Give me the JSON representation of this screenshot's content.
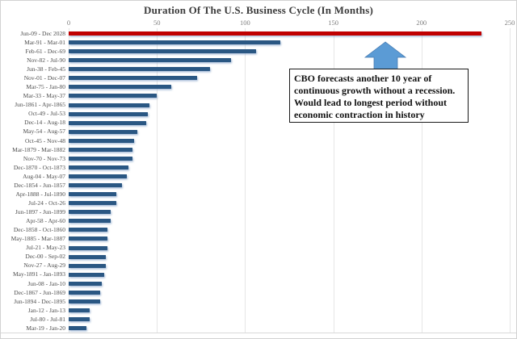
{
  "chart_data": {
    "type": "bar",
    "orientation": "horizontal",
    "title": "Duration Of The U.S. Business Cycle (In Months)",
    "xlabel": "",
    "ylabel": "",
    "xlim": [
      0,
      250
    ],
    "x_ticks": [
      0,
      50,
      100,
      150,
      200,
      250
    ],
    "grid": "vertical",
    "categories": [
      "Jun-09 - Dec 2028",
      "Mar-91 - Mar-01",
      "Feb-61 - Dec-69",
      "Nov-82 - Jul-90",
      "Jun-38 - Feb-45",
      "Nov-01 - Dec-07",
      "Mar-75 - Jan-80",
      "Mar-33 - May-37",
      "Jun-1861 - Apr-1865",
      "Oct-49 - Jul-53",
      "Dec-14 - Aug-18",
      "May-54 - Aug-57",
      "Oct-45 - Nov-48",
      "Mar-1879 - Mar-1882",
      "Nov-70 - Nov-73",
      "Dec-1870 - Oct-1873",
      "Aug-04 - May-07",
      "Dec-1854 - Jun-1857",
      "Apr-1888 - Jul-1890",
      "Jul-24 - Oct-26",
      "Jun-1897 - Jun-1899",
      "Apr-58 - Apr-60",
      "Dec-1858 - Oct-1860",
      "May-1885 - Mar-1887",
      "Jul-21 - May-23",
      "Dec-00 - Sep-02",
      "Nov-27 - Aug-29",
      "May-1891 - Jan-1893",
      "Jun-08 - Jan-10",
      "Dec-1867 - Jun-1869",
      "Jun-1894 - Dec-1895",
      "Jan-12 - Jan-13",
      "Jul-80 - Jul-81",
      "Mar-19 - Jan-20"
    ],
    "values": [
      234,
      120,
      106,
      92,
      80,
      73,
      58,
      50,
      46,
      45,
      44,
      39,
      37,
      36,
      36,
      34,
      33,
      30,
      27,
      27,
      24,
      24,
      22,
      22,
      22,
      21,
      21,
      20,
      19,
      18,
      18,
      12,
      12,
      10
    ],
    "bar_color": "#2a5783",
    "highlight_color": "#c00000",
    "highlight_index": 0
  },
  "annotation": {
    "lines": [
      "CBO forecasts another 10 year of",
      "continuous growth without a recession.",
      "Would lead to longest period without",
      "economic contraction in history"
    ],
    "arrow_color": "#5b9bd5",
    "arrow_outline": "#4579b0"
  }
}
